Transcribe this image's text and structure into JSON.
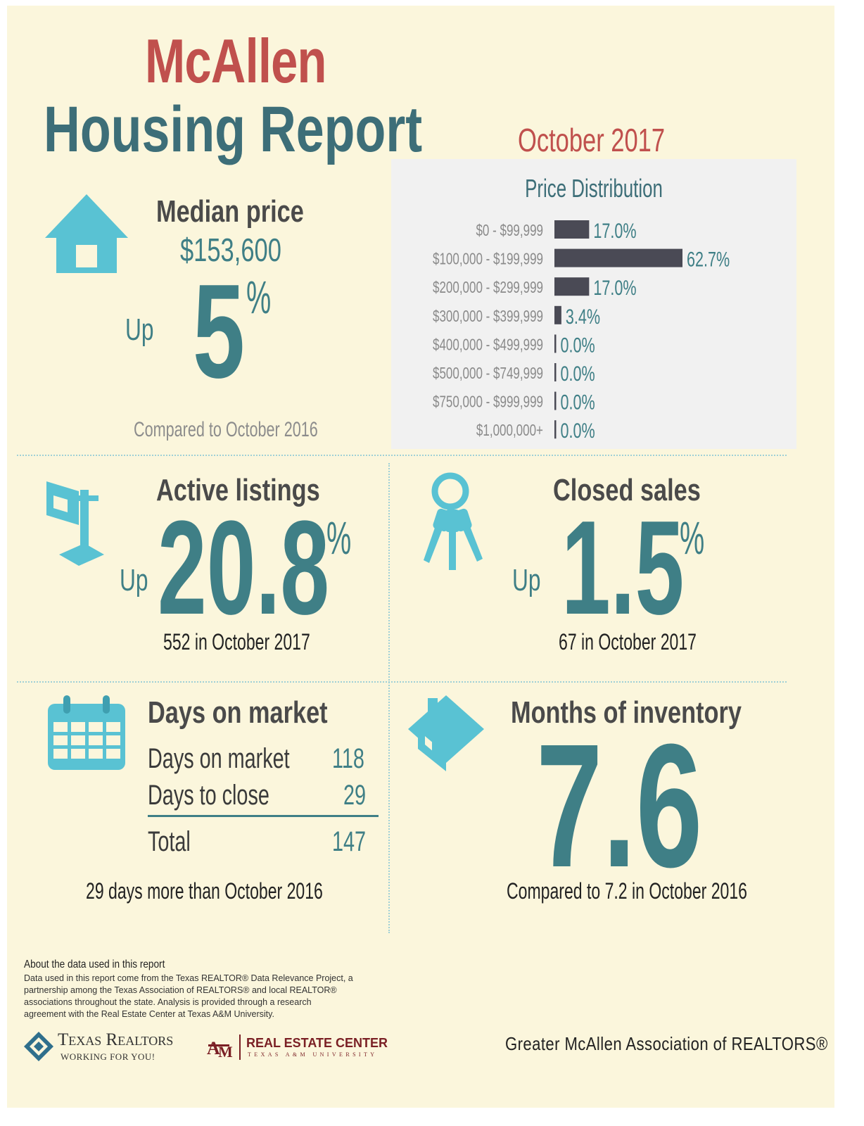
{
  "header": {
    "city": "McAllen",
    "title": "Housing Report",
    "period": "October 2017"
  },
  "median": {
    "label": "Median price",
    "value": "$153,600",
    "direction": "Up",
    "change": "5",
    "unit": "%",
    "compare": "Compared to October 2016"
  },
  "chart_data": {
    "type": "bar",
    "orientation": "horizontal",
    "title": "Price Distribution",
    "categories": [
      "$0 - $99,999",
      "$100,000 - $199,999",
      "$200,000 - $299,999",
      "$300,000 - $399,999",
      "$400,000 - $499,999",
      "$500,000 - $749,999",
      "$750,000 - $999,999",
      "$1,000,000+"
    ],
    "values": [
      17.0,
      62.7,
      17.0,
      3.4,
      0.0,
      0.0,
      0.0,
      0.0
    ],
    "labels": [
      "17.0%",
      "62.7%",
      "17.0%",
      "3.4%",
      "0.0%",
      "0.0%",
      "0.0%",
      "0.0%"
    ],
    "xlim": [
      0,
      62.7
    ],
    "bar_color": "#4a4a55",
    "label_color": "#3f7f86"
  },
  "active": {
    "label": "Active listings",
    "direction": "Up",
    "change": "20.8",
    "unit": "%",
    "note": "552 in October 2017"
  },
  "closed": {
    "label": "Closed sales",
    "direction": "Up",
    "change": "1.5",
    "unit": "%",
    "note": "67 in October 2017"
  },
  "days": {
    "title": "Days on market",
    "rows": [
      {
        "label": "Days on market",
        "value": "118"
      },
      {
        "label": "Days to close",
        "value": "29"
      }
    ],
    "total_label": "Total",
    "total_value": "147",
    "note": "29 days more than October 2016"
  },
  "inventory": {
    "title": "Months of inventory",
    "value": "7.6",
    "note": "Compared to 7.2 in October 2016"
  },
  "footer": {
    "about_title": "About the data used in this report",
    "about_lines": [
      "Data used in this report come from the Texas REALTOR® Data Relevance Project, a",
      "partnership among the Texas Association of REALTORS® and local REALTOR®",
      "associations throughout the state. Analysis is provided through a research",
      "agreement with the Real Estate Center at Texas A&M University."
    ],
    "texas_realtors": "Texas Realtors",
    "texas_tagline": "WORKING FOR YOU!",
    "rec_name": "REAL ESTATE CENTER",
    "rec_sub": "TEXAS A&M UNIVERSITY",
    "association": "Greater McAllen Association of REALTORS®"
  },
  "colors": {
    "background": "#fbf6dc",
    "teal": "#3f7f86",
    "icon": "#59c2d3",
    "red": "#c0504d",
    "dark": "#4a4a4a"
  }
}
